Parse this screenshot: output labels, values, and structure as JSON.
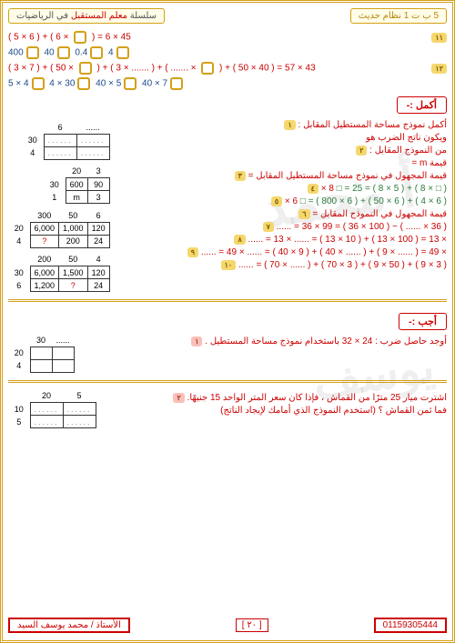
{
  "header": {
    "left": "5 ب ت 1 نظام حديث",
    "right_pre": "سلسلة ",
    "right_accent": "معلم المستقبل",
    "right_post": " في الرياضيات"
  },
  "top_lines": [
    {
      "badge": "١١",
      "parts": [
        "( 5 × 6 )",
        " + ( 6 × ",
        "□",
        " ) = 6 × 45"
      ],
      "colors": [
        "red",
        "red",
        "box",
        "red"
      ]
    },
    {
      "cont": true,
      "parts": [
        "400",
        "□",
        "   40",
        "□",
        "   0.4",
        "□",
        "   4",
        "□"
      ],
      "colors": [
        "blue",
        "box",
        "blue",
        "box",
        "blue",
        "box",
        "blue",
        "box"
      ]
    },
    {
      "badge": "١٢",
      "parts": [
        "( 3 × 7 )",
        " + ( 50 × ",
        "□",
        " ) + ( 3 × ....... ) + ( ....... × ",
        "□",
        " ) + ( 50 × 40 ) = 57 × 43"
      ],
      "colors": [
        "red",
        "red",
        "box",
        "red",
        "box",
        "red"
      ]
    },
    {
      "cont": true,
      "parts": [
        "5 × 4",
        "□",
        "   4 × 30",
        "□",
        "   40 × 5",
        "□",
        "   40 × 7",
        "□"
      ],
      "colors": [
        "blue",
        "box",
        "blue",
        "box",
        "blue",
        "box",
        "blue",
        "box"
      ]
    }
  ],
  "section1_label": "أكمل :-",
  "q1": {
    "badge": "١",
    "text": "أكمل نموذج مساحة المستطيل المقابل :",
    "text2": "ويكون ناتج الضرب هو"
  },
  "q2": {
    "badge": "٢",
    "text": "من النموذج المقابل :",
    "text2": "قيمة m = "
  },
  "q3": {
    "badge": "٣",
    "text": "قيمة المجهول في نموذج مساحة المستطيل المقابل = "
  },
  "q4": {
    "badge": "٤",
    "text": "8 × ",
    "eq": "□ = 25 = ( 8 × 5 ) + ( 8 × □ )"
  },
  "q5": {
    "badge": "٥",
    "text": "6 × ",
    "eq": "□ = ( 800 × 6 ) + ( 50 × 6 ) + ( 4 × 6 )"
  },
  "q6": {
    "badge": "٦",
    "text": "قيمة المجهول في النموذج المقابل = "
  },
  "q7": {
    "badge": "٧",
    "eq": "...... = 36 × 99 = ( 36 × 100 ) − ( ...... × 36 )"
  },
  "q8": {
    "badge": "٨",
    "eq": "...... = 13 × ...... = ( 13 × 10 ) + ( 13 × 100 ) = 13 × "
  },
  "q9": {
    "badge": "٩",
    "eq": "...... = 49 × ...... = ( 40 × 9 ) + ( 40 × ...... ) + ( 9 × ...... ) = 49 × "
  },
  "q10": {
    "badge": "١٠",
    "eq": "...... = ( 70 × ...... ) + ( 70 × 3 ) + ( 9 × 50 ) + ( 9 × 3 )"
  },
  "section2_label": "أجب :-",
  "s2q1": {
    "badge": "١",
    "text": "أوجد حاصل ضرب : 24 × 32  باستخدام نموذج مساحة المستطيل ."
  },
  "s2q2": {
    "badge": "٢",
    "text": "اشترت ميار 25 مترًا من القماش ، فإذا كان سعر المتر الواحد 15 جنيهًا.",
    "text2": "فما ثمن القماش ؟ (استخدم النموذج الذي أمامك لإيجاد الناتج)"
  },
  "tables": {
    "t0": {
      "cols": [
        "6",
        "......"
      ],
      "rows": [
        [
          "30",
          "......",
          "......"
        ],
        [
          "4",
          "......",
          "......"
        ]
      ]
    },
    "t1": {
      "cols": [
        "20",
        "3"
      ],
      "rows": [
        [
          "30",
          "600",
          "90"
        ],
        [
          "1",
          "m",
          "3"
        ]
      ]
    },
    "t2": {
      "cols": [
        "300",
        "50",
        "6"
      ],
      "rows": [
        [
          "20",
          "6,000",
          "1,000",
          "120"
        ],
        [
          "4",
          "?",
          "200",
          "24"
        ]
      ]
    },
    "t3": {
      "cols": [
        "200",
        "50",
        "4"
      ],
      "rows": [
        [
          "30",
          "6,000",
          "1,500",
          "120"
        ],
        [
          "6",
          "1,200",
          "?",
          "24"
        ]
      ]
    },
    "t4": {
      "cols": [
        "30",
        "......"
      ],
      "rows": [
        [
          "20",
          "",
          ""
        ],
        [
          "4",
          "",
          ""
        ]
      ]
    },
    "t5": {
      "cols": [
        "20",
        "5"
      ],
      "rows": [
        [
          "10",
          "......",
          "......"
        ],
        [
          "5",
          "......",
          "......"
        ]
      ]
    }
  },
  "footer": {
    "phone": "01159305444",
    "page": "[ ٢٠ ]",
    "teacher": "الأستاذ / محمد يوسف السيد"
  },
  "watermark": {
    "a": "أ محمد",
    "b": "يوسف"
  },
  "colors": {
    "red": "#c00",
    "blue": "#1a4a8a",
    "border": "#d4a017"
  }
}
